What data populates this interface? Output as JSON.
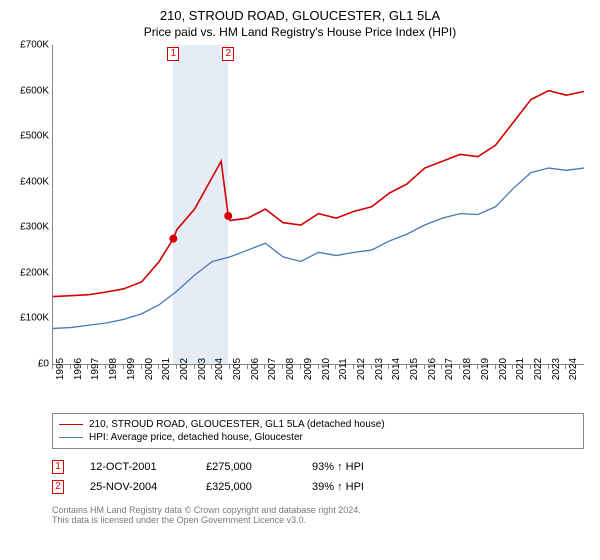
{
  "title": "210, STROUD ROAD, GLOUCESTER, GL1 5LA",
  "subtitle": "Price paid vs. HM Land Registry's House Price Index (HPI)",
  "chart": {
    "type": "line",
    "background_color": "#ffffff",
    "ylim": [
      0,
      700000
    ],
    "ytick_step": 100000,
    "yticks": [
      "£0",
      "£100K",
      "£200K",
      "£300K",
      "£400K",
      "£500K",
      "£600K",
      "£700K"
    ],
    "xlim": [
      1995,
      2025
    ],
    "xticks": [
      1995,
      1996,
      1997,
      1998,
      1999,
      2000,
      2001,
      2002,
      2003,
      2004,
      2005,
      2006,
      2007,
      2008,
      2009,
      2010,
      2011,
      2012,
      2013,
      2014,
      2015,
      2016,
      2017,
      2018,
      2019,
      2020,
      2021,
      2022,
      2023,
      2024
    ],
    "axis_color": "#888888",
    "tick_fontsize": 10,
    "band": {
      "from": 2001.8,
      "to": 2004.9,
      "color": "#e6ecf5"
    },
    "series": [
      {
        "id": "property",
        "label": "210, STROUD ROAD, GLOUCESTER, GL1 5LA (detached house)",
        "color": "#d40000",
        "line_width": 1.6,
        "points": [
          [
            1995,
            148000
          ],
          [
            1996,
            150000
          ],
          [
            1997,
            152000
          ],
          [
            1998,
            158000
          ],
          [
            1999,
            165000
          ],
          [
            2000,
            180000
          ],
          [
            2001,
            225000
          ],
          [
            2001.8,
            275000
          ],
          [
            2002,
            295000
          ],
          [
            2003,
            340000
          ],
          [
            2004,
            410000
          ],
          [
            2004.5,
            445000
          ],
          [
            2004.9,
            325000
          ],
          [
            2005,
            315000
          ],
          [
            2006,
            320000
          ],
          [
            2007,
            340000
          ],
          [
            2008,
            310000
          ],
          [
            2009,
            305000
          ],
          [
            2010,
            330000
          ],
          [
            2011,
            320000
          ],
          [
            2012,
            335000
          ],
          [
            2013,
            345000
          ],
          [
            2014,
            375000
          ],
          [
            2015,
            395000
          ],
          [
            2016,
            430000
          ],
          [
            2017,
            445000
          ],
          [
            2018,
            460000
          ],
          [
            2019,
            455000
          ],
          [
            2020,
            480000
          ],
          [
            2021,
            530000
          ],
          [
            2022,
            580000
          ],
          [
            2023,
            600000
          ],
          [
            2024,
            590000
          ],
          [
            2025,
            598000
          ]
        ]
      },
      {
        "id": "hpi",
        "label": "HPI: Average price, detached house, Gloucester",
        "color": "#4a78b5",
        "line_width": 1.3,
        "points": [
          [
            1995,
            78000
          ],
          [
            1996,
            80000
          ],
          [
            1997,
            85000
          ],
          [
            1998,
            90000
          ],
          [
            1999,
            98000
          ],
          [
            2000,
            110000
          ],
          [
            2001,
            130000
          ],
          [
            2002,
            160000
          ],
          [
            2003,
            195000
          ],
          [
            2004,
            225000
          ],
          [
            2005,
            235000
          ],
          [
            2006,
            250000
          ],
          [
            2007,
            265000
          ],
          [
            2008,
            235000
          ],
          [
            2009,
            225000
          ],
          [
            2010,
            245000
          ],
          [
            2011,
            238000
          ],
          [
            2012,
            245000
          ],
          [
            2013,
            250000
          ],
          [
            2014,
            270000
          ],
          [
            2015,
            285000
          ],
          [
            2016,
            305000
          ],
          [
            2017,
            320000
          ],
          [
            2018,
            330000
          ],
          [
            2019,
            328000
          ],
          [
            2020,
            345000
          ],
          [
            2021,
            385000
          ],
          [
            2022,
            420000
          ],
          [
            2023,
            430000
          ],
          [
            2024,
            425000
          ],
          [
            2025,
            430000
          ]
        ]
      }
    ],
    "markers": [
      {
        "n": "1",
        "x": 2001.8,
        "y": 275000,
        "color": "#d40000"
      },
      {
        "n": "2",
        "x": 2004.9,
        "y": 325000,
        "color": "#d40000"
      }
    ]
  },
  "legend": {
    "border_color": "#888888"
  },
  "transactions": [
    {
      "n": "1",
      "date": "12-OCT-2001",
      "price": "£275,000",
      "hpi": "93% ↑ HPI",
      "color": "#d40000"
    },
    {
      "n": "2",
      "date": "25-NOV-2004",
      "price": "£325,000",
      "hpi": "39% ↑ HPI",
      "color": "#d40000"
    }
  ],
  "footer": {
    "line1": "Contains HM Land Registry data © Crown copyright and database right 2024.",
    "line2": "This data is licensed under the Open Government Licence v3.0."
  }
}
